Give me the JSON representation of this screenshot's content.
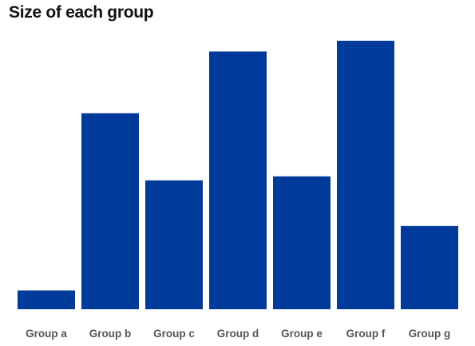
{
  "colors": {
    "bar": "#003a9b",
    "tick_label": "#555555",
    "title": "#111111"
  },
  "chart_data": {
    "type": "bar",
    "title": "Size of each group",
    "xlabel": "",
    "ylabel": "",
    "categories": [
      "Group a",
      "Group b",
      "Group c",
      "Group d",
      "Group e",
      "Group f",
      "Group g"
    ],
    "values": [
      7,
      73,
      48,
      96,
      49.5,
      100,
      31
    ],
    "ylim": [
      0,
      100
    ],
    "grid": false,
    "legend": "none"
  }
}
